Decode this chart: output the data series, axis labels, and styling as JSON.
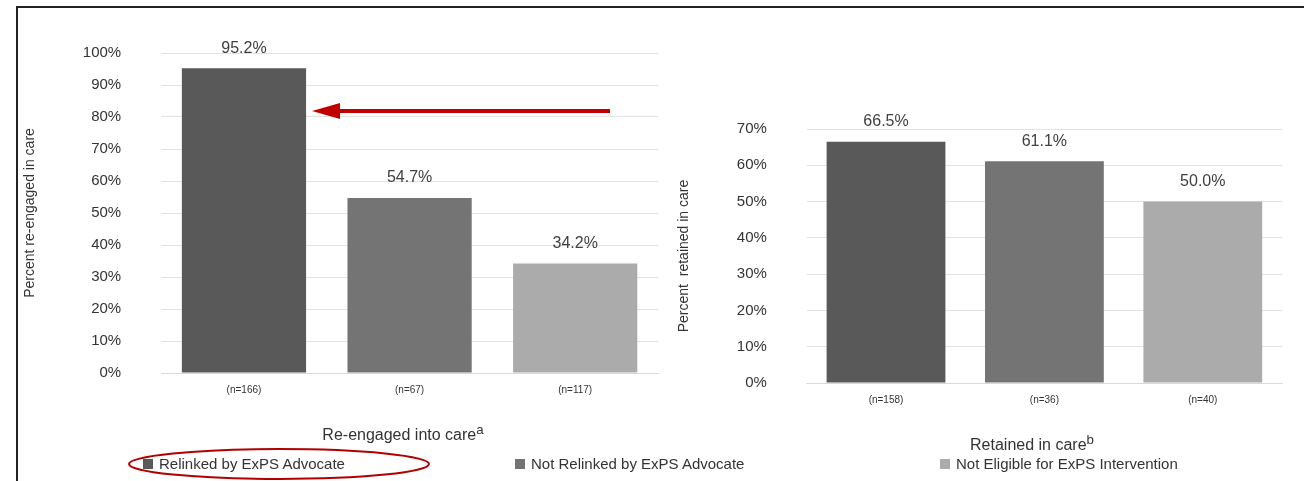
{
  "chart_data": [
    {
      "type": "bar",
      "categories": [
        "(n=166)",
        "(n=67)",
        "(n=117)"
      ],
      "xlabel": "Re-engaged into care$^{a}$",
      "ylabel": "Percent re-engaged in care",
      "series": [
        {
          "name": "Relinked by ExPS Advocate",
          "color": "#595959",
          "values": [
            95.2,
            null,
            null
          ],
          "value_labels": [
            "95.2%",
            null,
            null
          ]
        },
        {
          "name": "Not Relinked by ExPS Advocate",
          "color": "#747474",
          "values": [
            null,
            54.7,
            null
          ],
          "value_labels": [
            null,
            "54.7%",
            null
          ]
        },
        {
          "name": "Not Eligible for ExPS Intervention",
          "color": "#ababab",
          "values": [
            null,
            null,
            34.2
          ],
          "value_labels": [
            null,
            null,
            "34.2%"
          ]
        }
      ],
      "ylim": [
        0,
        100
      ],
      "yticks": [
        {
          "value": 0,
          "label": "0%"
        },
        {
          "value": 10,
          "label": "10%"
        },
        {
          "value": 20,
          "label": "20%"
        },
        {
          "value": 30,
          "label": "30%"
        },
        {
          "value": 40,
          "label": "40%"
        },
        {
          "value": 50,
          "label": "50%"
        },
        {
          "value": 60,
          "label": "60%"
        },
        {
          "value": 70,
          "label": "70%"
        },
        {
          "value": 80,
          "label": "80%"
        },
        {
          "value": 90,
          "label": "90%"
        },
        {
          "value": 100,
          "label": "100%"
        }
      ],
      "grid": "y",
      "legend": "bottom"
    },
    {
      "type": "bar",
      "categories": [
        "(n=158)",
        "(n=36)",
        "(n=40)"
      ],
      "xlabel": "Retained in care$^{b}$",
      "ylabel": "Percent  retained in care",
      "series": [
        {
          "color": "#595959",
          "values": [
            66.5,
            null,
            null
          ],
          "value_labels": [
            "66.5%",
            null,
            null
          ]
        },
        {
          "color": "#747474",
          "values": [
            null,
            61.1,
            null
          ],
          "value_labels": [
            null,
            "61.1%",
            null
          ]
        },
        {
          "color": "#ababab",
          "values": [
            null,
            null,
            50.0
          ],
          "value_labels": [
            null,
            null,
            "50.0%"
          ]
        }
      ],
      "ylim": [
        0,
        70
      ],
      "yticks": [
        {
          "value": 0,
          "label": "0%"
        },
        {
          "value": 10,
          "label": "10%"
        },
        {
          "value": 20,
          "label": "20%"
        },
        {
          "value": 30,
          "label": "30%"
        },
        {
          "value": 40,
          "label": "40%"
        },
        {
          "value": 50,
          "label": "50%"
        },
        {
          "value": 60,
          "label": "60%"
        },
        {
          "value": 70,
          "label": "70%"
        }
      ],
      "grid": "y"
    }
  ]
}
